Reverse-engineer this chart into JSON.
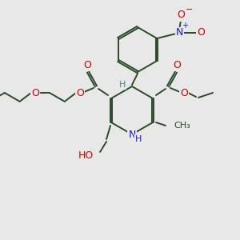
{
  "bg_color": "#e8e8e8",
  "bond_color": "#2a4a2a",
  "bond_width": 1.4,
  "dbo": 0.012,
  "atom_colors": {
    "O": "#cc0000",
    "N": "#1a1acc",
    "H": "#4a8888",
    "C": "#2a4a2a"
  },
  "font_size": 9,
  "font_size_sm": 8,
  "figsize": [
    3.0,
    3.0
  ],
  "dpi": 100,
  "xlim": [
    0,
    3.0
  ],
  "ylim": [
    0,
    3.0
  ]
}
